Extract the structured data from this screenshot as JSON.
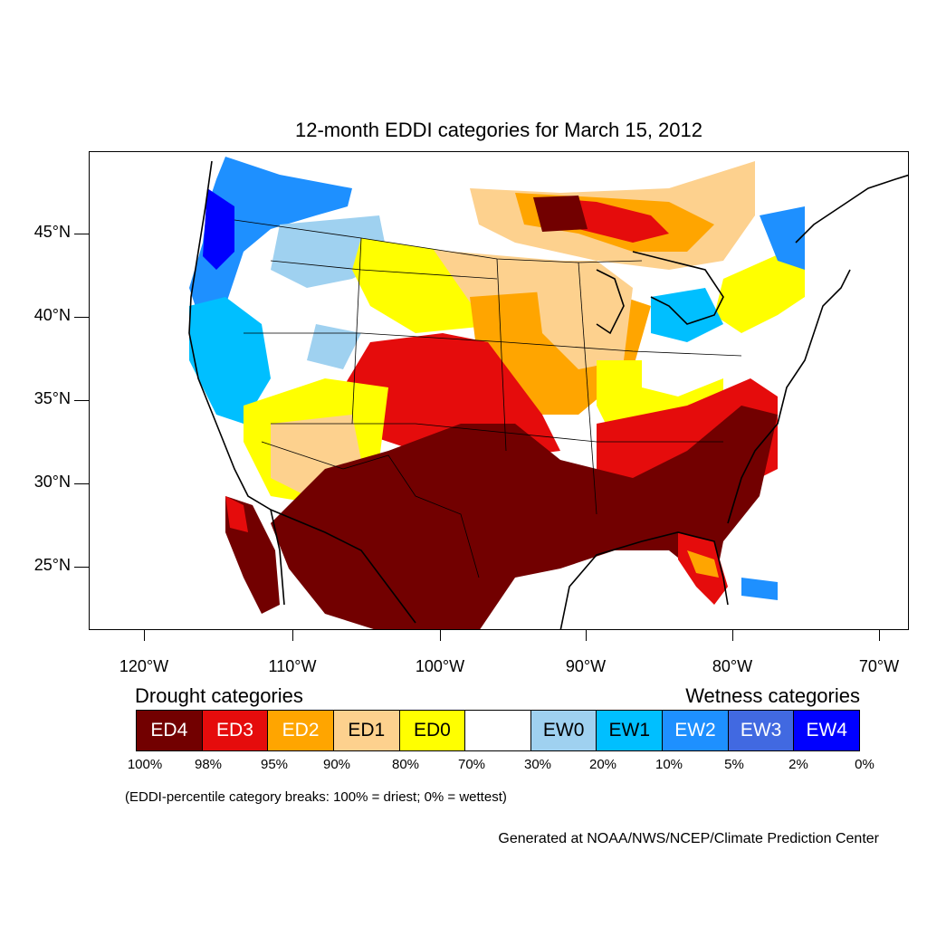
{
  "title": "12-month EDDI categories for March 15, 2012",
  "lat_labels": [
    "45°N",
    "40°N",
    "35°N",
    "30°N",
    "25°N"
  ],
  "lon_labels": [
    "120°W",
    "110°W",
    "100°W",
    "90°W",
    "80°W",
    "70°W"
  ],
  "legend": {
    "drought_heading": "Drought categories",
    "wetness_heading": "Wetness categories",
    "categories": [
      {
        "label": "ED4",
        "color": "#720000",
        "text_color": "#ffffff"
      },
      {
        "label": "ED3",
        "color": "#e50c0c",
        "text_color": "#ffffff"
      },
      {
        "label": "ED2",
        "color": "#ffa500",
        "text_color": "#ffffff"
      },
      {
        "label": "ED1",
        "color": "#fdd18e",
        "text_color": "#000000"
      },
      {
        "label": "ED0",
        "color": "#ffff00",
        "text_color": "#000000"
      },
      {
        "label": "",
        "color": "#ffffff",
        "text_color": "#000000"
      },
      {
        "label": "EW0",
        "color": "#9fd1f0",
        "text_color": "#000000"
      },
      {
        "label": "EW1",
        "color": "#00bfff",
        "text_color": "#000000"
      },
      {
        "label": "EW2",
        "color": "#1e90ff",
        "text_color": "#ffffff"
      },
      {
        "label": "EW3",
        "color": "#4169e1",
        "text_color": "#ffffff"
      },
      {
        "label": "EW4",
        "color": "#0000ff",
        "text_color": "#ffffff"
      }
    ],
    "breaks": [
      "100%",
      "98%",
      "95%",
      "90%",
      "80%",
      "70%",
      "30%",
      "20%",
      "10%",
      "5%",
      "2%",
      "0%"
    ]
  },
  "breaks_note": "(EDDI-percentile category breaks: 100% = driest; 0% = wettest)",
  "credit": "Generated at NOAA/NWS/NCEP/Climate Prediction Center",
  "map_regions": [
    {
      "name": "southern-plains-ed4",
      "category": "ED4"
    },
    {
      "name": "southeast-ed4",
      "category": "ED4"
    },
    {
      "name": "great-lakes-north-ed4",
      "category": "ED4"
    },
    {
      "name": "central-plains-ed3",
      "category": "ED3"
    },
    {
      "name": "midwest-ed2",
      "category": "ED2"
    },
    {
      "name": "northern-plains-ed1",
      "category": "ED1"
    },
    {
      "name": "great-basin-ed0",
      "category": "ED0"
    },
    {
      "name": "pacific-northwest-ew",
      "category": "EW2"
    },
    {
      "name": "northeast-ew",
      "category": "EW1"
    }
  ]
}
